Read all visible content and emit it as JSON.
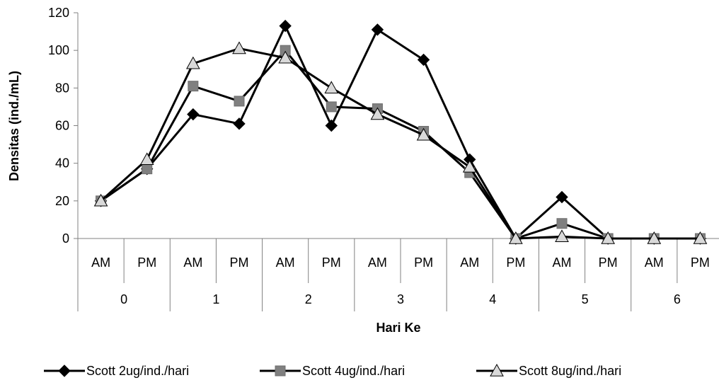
{
  "chart_data": {
    "type": "line",
    "xlabel": "Hari Ke",
    "ylabel": "Densitas (ind./mL)",
    "ylim": [
      0,
      120
    ],
    "yticks": [
      0,
      20,
      40,
      60,
      80,
      100,
      120
    ],
    "categories": [
      "AM",
      "PM",
      "AM",
      "PM",
      "AM",
      "PM",
      "AM",
      "PM",
      "AM",
      "PM",
      "AM",
      "PM",
      "AM",
      "PM"
    ],
    "groups": [
      "0",
      "1",
      "2",
      "3",
      "4",
      "5",
      "6"
    ],
    "series": [
      {
        "name": "Scott 2ug/ind./hari",
        "marker": "diamond",
        "color": "#000000",
        "values": [
          20,
          37,
          66,
          61,
          113,
          60,
          111,
          95,
          42,
          0,
          22,
          0,
          0,
          0
        ]
      },
      {
        "name": "Scott 4ug/ind./hari",
        "marker": "square",
        "color": "#808080",
        "values": [
          20,
          37,
          81,
          73,
          100,
          70,
          69,
          57,
          35,
          0,
          8,
          0,
          0,
          0
        ]
      },
      {
        "name": "Scott 8ug/ind./hari",
        "marker": "triangle",
        "color": "#d9d9d9",
        "values": [
          20,
          42,
          93,
          101,
          96,
          80,
          66,
          55,
          38,
          0,
          1,
          0,
          0,
          0
        ]
      }
    ],
    "grid": false,
    "legend_position": "bottom"
  }
}
